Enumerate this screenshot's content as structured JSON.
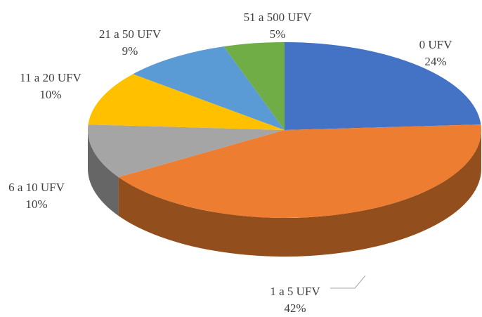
{
  "chart_data": {
    "type": "pie",
    "categories": [
      "0 UFV",
      "1 a 5 UFV",
      "6 a 10 UFV",
      "11 a 20 UFV",
      "21 a 50 UFV",
      "51 a 500 UFV"
    ],
    "values": [
      24,
      42,
      10,
      10,
      9,
      5
    ],
    "value_labels": [
      "24%",
      "42%",
      "10%",
      "10%",
      "9%",
      "5%"
    ],
    "colors": [
      "#4472c4",
      "#ed7d31",
      "#a5a5a5",
      "#ffc000",
      "#5b9bd5",
      "#70ad47"
    ]
  }
}
